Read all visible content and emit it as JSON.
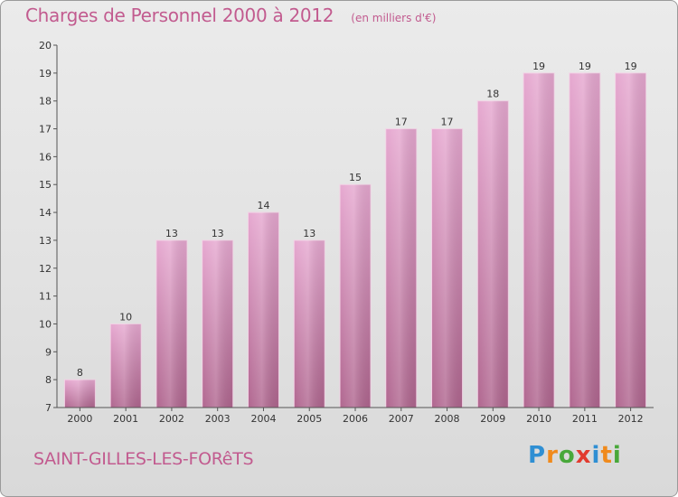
{
  "title": "Charges de Personnel 2000 à 2012",
  "subtitle": "(en milliers d'€)",
  "city": "SAINT-GILLES-LES-FORêTS",
  "logo": {
    "text": "Proxiti",
    "colors": [
      "#2f8fd3",
      "#f08a1c",
      "#48a83a",
      "#e23b2f",
      "#2f8fd3",
      "#f08a1c",
      "#48a83a"
    ]
  },
  "colors": {
    "title": "#c25b8f",
    "bar_top": "#e6a8d0",
    "bar_bottom": "#b0668f",
    "axis": "#555555"
  },
  "chart_data": {
    "type": "bar",
    "title": "Charges de Personnel 2000 à 2012",
    "subtitle": "(en milliers d'€)",
    "categories": [
      "2000",
      "2001",
      "2002",
      "2003",
      "2004",
      "2005",
      "2006",
      "2007",
      "2008",
      "2009",
      "2010",
      "2011",
      "2012"
    ],
    "values": [
      8,
      10,
      13,
      13,
      14,
      13,
      15,
      17,
      17,
      18,
      19,
      19,
      19
    ],
    "ylim": [
      7,
      20
    ],
    "yticks": [
      7,
      8,
      9,
      10,
      11,
      12,
      13,
      14,
      15,
      16,
      17,
      18,
      19,
      20
    ],
    "grid": false,
    "legend": "none"
  }
}
